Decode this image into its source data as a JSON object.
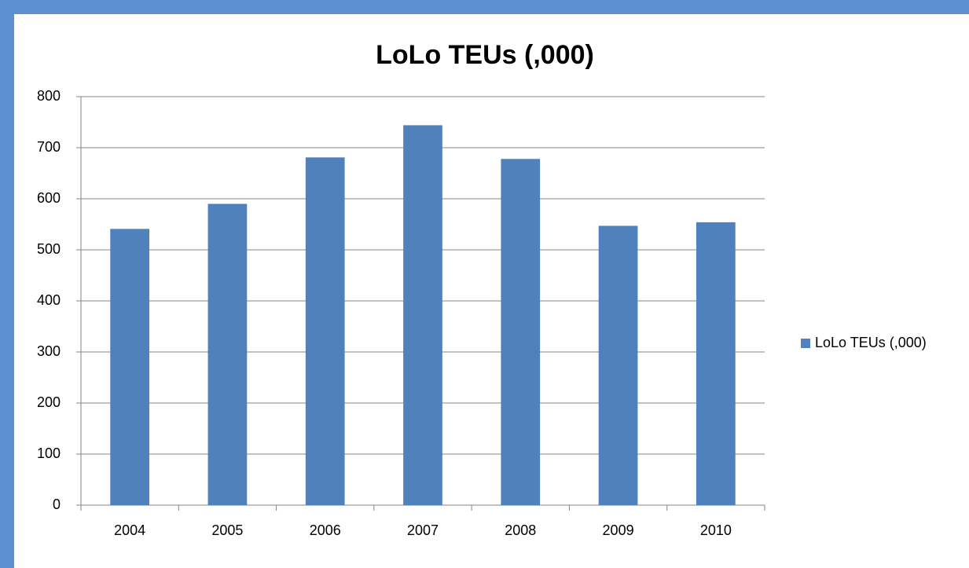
{
  "chart_data": {
    "type": "bar",
    "title": "LoLo TEUs (,000)",
    "categories": [
      "2004",
      "2005",
      "2006",
      "2007",
      "2008",
      "2009",
      "2010"
    ],
    "series": [
      {
        "name": "LoLo TEUs (,000)",
        "color": "#4f81bd",
        "values": [
          541,
          590,
          681,
          744,
          678,
          547,
          554
        ]
      }
    ],
    "ylim": [
      0,
      800
    ],
    "yticks": [
      0,
      100,
      200,
      300,
      400,
      500,
      600,
      700,
      800
    ],
    "grid": true,
    "legend": "right"
  }
}
